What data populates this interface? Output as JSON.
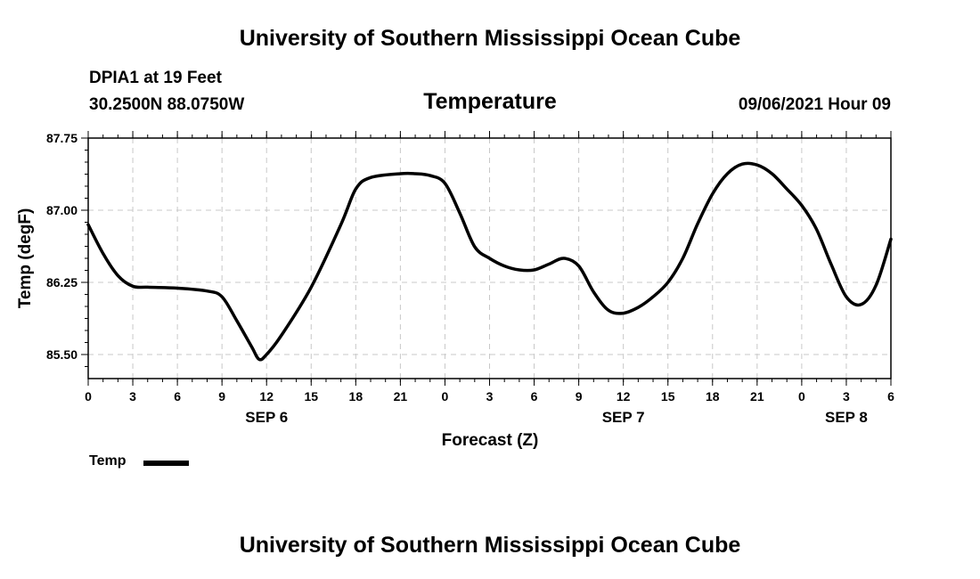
{
  "header": {
    "title_top": "University of Southern Mississippi Ocean Cube",
    "title_bottom": "University of Southern Mississippi Ocean Cube",
    "station": "DPIA1 at 19 Feet",
    "coords": "30.2500N  88.0750W",
    "datetime": "09/06/2021 Hour 09"
  },
  "legend": {
    "label": "Temp"
  },
  "chart_data": {
    "type": "line",
    "title": "Temperature",
    "xlabel": "Forecast (Z)",
    "ylabel": "Temp (degF)",
    "xlim": [
      0,
      54
    ],
    "ylim": [
      85.25,
      87.75
    ],
    "grid": true,
    "legend_position": "bottom-left",
    "yticks": [
      85.5,
      86.25,
      87.0,
      87.75
    ],
    "ytick_labels": [
      "85.50",
      "86.25",
      "87.00",
      "87.75"
    ],
    "xticks": [
      0,
      3,
      6,
      9,
      12,
      15,
      18,
      21,
      24,
      27,
      30,
      33,
      36,
      39,
      42,
      45,
      48,
      51,
      54
    ],
    "xtick_labels": [
      "0",
      "3",
      "6",
      "9",
      "12",
      "15",
      "18",
      "21",
      "0",
      "3",
      "6",
      "9",
      "12",
      "15",
      "18",
      "21",
      "0",
      "3",
      "6"
    ],
    "date_labels": [
      {
        "x": 12,
        "label": "SEP 6"
      },
      {
        "x": 36,
        "label": "SEP 7"
      },
      {
        "x": 51,
        "label": "SEP 8"
      }
    ],
    "series": [
      {
        "name": "Temp",
        "x": [
          0,
          1,
          2,
          3,
          4,
          6,
          8,
          9,
          10,
          11,
          11.5,
          12,
          13,
          15,
          17,
          18,
          19,
          21,
          22,
          23,
          24,
          25,
          26,
          27,
          28,
          29,
          30,
          31,
          32,
          33,
          34,
          35,
          36,
          37,
          38,
          39,
          40,
          41,
          42,
          43,
          44,
          45,
          46,
          47,
          48,
          49,
          50,
          51,
          52,
          53,
          54
        ],
        "y": [
          86.85,
          86.55,
          86.32,
          86.21,
          86.2,
          86.19,
          86.16,
          86.1,
          85.85,
          85.58,
          85.45,
          85.5,
          85.7,
          86.2,
          86.85,
          87.22,
          87.34,
          87.38,
          87.38,
          87.36,
          87.28,
          86.97,
          86.62,
          86.5,
          86.42,
          86.38,
          86.38,
          86.44,
          86.5,
          86.42,
          86.15,
          85.96,
          85.93,
          85.99,
          86.1,
          86.25,
          86.5,
          86.86,
          87.17,
          87.38,
          87.48,
          87.47,
          87.38,
          87.22,
          87.05,
          86.8,
          86.43,
          86.1,
          86.02,
          86.22,
          86.7
        ]
      }
    ]
  }
}
